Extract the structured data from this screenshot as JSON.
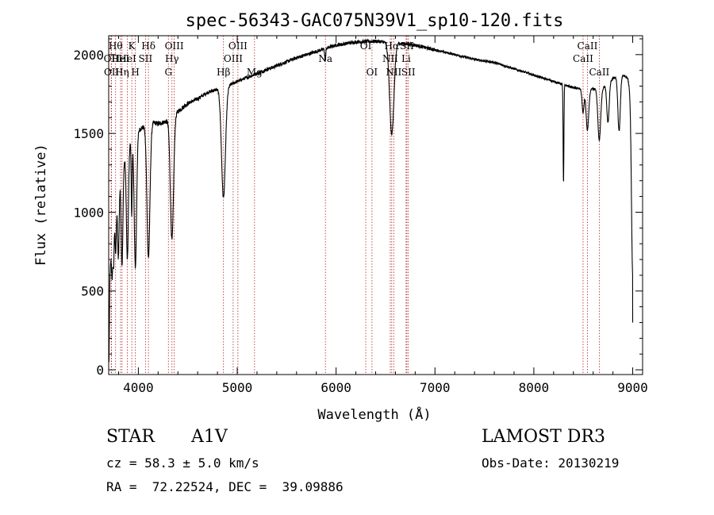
{
  "chart_data": {
    "type": "line",
    "title": "spec-56343-GAC075N39V1_sp10-120.fits",
    "xlabel": "Wavelength (Å)",
    "ylabel": "Flux (relative)",
    "xlim": [
      3700,
      9100
    ],
    "ylim": [
      -30,
      2120
    ],
    "xticks": [
      4000,
      5000,
      6000,
      7000,
      8000,
      9000
    ],
    "yticks": [
      0,
      500,
      1000,
      1500,
      2000
    ],
    "grid": false,
    "continuum": {
      "x": [
        3700,
        3730,
        3760,
        3800,
        3850,
        3900,
        3950,
        4000,
        4050,
        4100,
        4150,
        4200,
        4300,
        4400,
        4500,
        4600,
        4700,
        4800,
        4900,
        5000,
        5200,
        5400,
        5600,
        5800,
        6000,
        6200,
        6400,
        6600,
        6800,
        7000,
        7200,
        7400,
        7600,
        7800,
        8000,
        8200,
        8400,
        8500,
        8600,
        8700,
        8800,
        8900,
        8950,
        8990
      ],
      "y": [
        450,
        800,
        1050,
        1200,
        1320,
        1420,
        1490,
        1520,
        1540,
        1560,
        1570,
        1560,
        1580,
        1640,
        1690,
        1720,
        1760,
        1780,
        1800,
        1830,
        1880,
        1930,
        1980,
        2020,
        2060,
        2080,
        2085,
        2075,
        2060,
        2030,
        2000,
        1970,
        1950,
        1910,
        1870,
        1830,
        1790,
        1780,
        1780,
        1790,
        1850,
        1870,
        1850,
        1700
      ]
    },
    "absorption": [
      {
        "center": 3735,
        "depth": 250,
        "width": 6
      },
      {
        "center": 3750,
        "depth": 300,
        "width": 6
      },
      {
        "center": 3771,
        "depth": 350,
        "width": 7
      },
      {
        "center": 3798,
        "depth": 480,
        "width": 8
      },
      {
        "center": 3835,
        "depth": 620,
        "width": 9
      },
      {
        "center": 3889,
        "depth": 700,
        "width": 10
      },
      {
        "center": 3933,
        "depth": 480,
        "width": 5
      },
      {
        "center": 3970,
        "depth": 850,
        "width": 12
      },
      {
        "center": 4102,
        "depth": 850,
        "width": 15
      },
      {
        "center": 4340,
        "depth": 780,
        "width": 16
      },
      {
        "center": 4861,
        "depth": 700,
        "width": 20
      },
      {
        "center": 5890,
        "depth": 80,
        "width": 5
      },
      {
        "center": 6563,
        "depth": 580,
        "width": 22
      },
      {
        "center": 8300,
        "depth": 630,
        "width": 4
      },
      {
        "center": 8498,
        "depth": 150,
        "width": 10
      },
      {
        "center": 8542,
        "depth": 260,
        "width": 13
      },
      {
        "center": 8662,
        "depth": 330,
        "width": 14
      },
      {
        "center": 8750,
        "depth": 250,
        "width": 12
      },
      {
        "center": 8862,
        "depth": 350,
        "width": 12
      },
      {
        "center": 9000,
        "depth": 1100,
        "width": 12
      }
    ],
    "lines": [
      {
        "wave": 3726,
        "label": "OII",
        "row": 2
      },
      {
        "wave": 3729,
        "label": "OII",
        "row": 3
      },
      {
        "wave": 3770,
        "label": "Hθ",
        "row": 1
      },
      {
        "wave": 3820,
        "label": "HeI",
        "row": 2
      },
      {
        "wave": 3835,
        "label": "Hη",
        "row": 3
      },
      {
        "wave": 3889,
        "label": "HeI",
        "row": 2
      },
      {
        "wave": 3934,
        "label": "K",
        "row": 1
      },
      {
        "wave": 3970,
        "label": "H",
        "row": 3
      },
      {
        "wave": 4072,
        "label": "SII",
        "row": 2
      },
      {
        "wave": 4102,
        "label": "Hδ",
        "row": 1
      },
      {
        "wave": 4304,
        "label": "G",
        "row": 3
      },
      {
        "wave": 4340,
        "label": "Hγ",
        "row": 2
      },
      {
        "wave": 4363,
        "label": "OIII",
        "row": 1
      },
      {
        "wave": 4861,
        "label": "Hβ",
        "row": 3
      },
      {
        "wave": 4959,
        "label": "OIII",
        "row": 2
      },
      {
        "wave": 5007,
        "label": "OIII",
        "row": 1
      },
      {
        "wave": 5175,
        "label": "Mg",
        "row": 3
      },
      {
        "wave": 5892,
        "label": "Na",
        "row": 2
      },
      {
        "wave": 6300,
        "label": "OI",
        "row": 1
      },
      {
        "wave": 6363,
        "label": "OI",
        "row": 3
      },
      {
        "wave": 6548,
        "label": "NII",
        "row": 2
      },
      {
        "wave": 6563,
        "label": "Hα",
        "row": 1
      },
      {
        "wave": 6583,
        "label": "NII",
        "row": 3
      },
      {
        "wave": 6708,
        "label": "Li",
        "row": 2
      },
      {
        "wave": 6716,
        "label": "SII",
        "row": 1
      },
      {
        "wave": 6731,
        "label": "SII",
        "row": 3
      },
      {
        "wave": 8498,
        "label": "CaII",
        "row": 2
      },
      {
        "wave": 8542,
        "label": "CaII",
        "row": 1
      },
      {
        "wave": 8662,
        "label": "CaII",
        "row": 3
      }
    ],
    "colors": {
      "spectrum": "#000000",
      "lines": "#b22222"
    }
  },
  "info": {
    "class_label": "STAR",
    "subclass": "A1V",
    "survey": "LAMOST DR3",
    "cz": "cz = 58.3 ± 5.0 km/s",
    "obs_date": "Obs-Date: 20130219",
    "coords": "RA =  72.22524, DEC =  39.09886"
  }
}
